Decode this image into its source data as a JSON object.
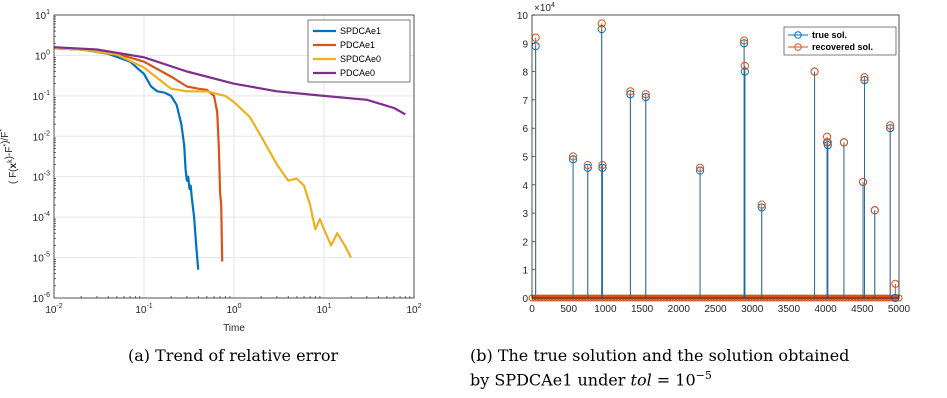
{
  "chart_data": [
    {
      "type": "line",
      "xscale": "log",
      "yscale": "log",
      "xlim": [
        0.01,
        100
      ],
      "ylim": [
        1e-06,
        10
      ],
      "xlabel": "Time",
      "ylabel": "( F(x^k)-F*)/F*",
      "xticks": [
        "10^-2",
        "10^-1",
        "10^0",
        "10^1",
        "10^2"
      ],
      "yticks": [
        "10^-6",
        "10^-5",
        "10^-4",
        "10^-3",
        "10^-2",
        "10^-1",
        "10^0",
        "10^1"
      ],
      "legend_position": "top-right",
      "series": [
        {
          "name": "SPDCAe1",
          "color": "#0072BD",
          "x": [
            0.01,
            0.02,
            0.04,
            0.07,
            0.1,
            0.12,
            0.14,
            0.17,
            0.2,
            0.23,
            0.26,
            0.28,
            0.29,
            0.3,
            0.31,
            0.32,
            0.33,
            0.34,
            0.36,
            0.38,
            0.4
          ],
          "y": [
            1.5,
            1.4,
            1.1,
            0.7,
            0.35,
            0.17,
            0.13,
            0.12,
            0.1,
            0.06,
            0.02,
            0.006,
            0.0015,
            0.0008,
            0.001,
            0.0005,
            0.0006,
            0.0003,
            0.0001,
            2e-05,
            5e-06
          ]
        },
        {
          "name": "PDCAe1",
          "color": "#D95319",
          "x": [
            0.01,
            0.02,
            0.05,
            0.1,
            0.2,
            0.3,
            0.4,
            0.5,
            0.6,
            0.65,
            0.68,
            0.7,
            0.72,
            0.74
          ],
          "y": [
            1.5,
            1.4,
            1.1,
            0.7,
            0.3,
            0.17,
            0.15,
            0.14,
            0.1,
            0.04,
            0.005,
            0.0004,
            0.0002,
            8e-06
          ]
        },
        {
          "name": "SPDCAe0",
          "color": "#EDB120",
          "x": [
            0.01,
            0.02,
            0.05,
            0.1,
            0.2,
            0.3,
            0.5,
            0.8,
            1,
            1.5,
            2,
            3,
            4,
            5,
            6,
            7,
            8,
            9,
            10,
            12,
            14,
            17,
            20
          ],
          "y": [
            1.5,
            1.4,
            1.05,
            0.5,
            0.15,
            0.13,
            0.13,
            0.1,
            0.07,
            0.03,
            0.01,
            0.002,
            0.0008,
            0.0009,
            0.0006,
            0.0002,
            5e-05,
            9e-05,
            5e-05,
            2e-05,
            4e-05,
            2e-05,
            1e-05
          ]
        },
        {
          "name": "PDCAe0",
          "color": "#7E2F8E",
          "x": [
            0.01,
            0.03,
            0.1,
            0.3,
            1,
            3,
            10,
            30,
            60,
            80
          ],
          "y": [
            1.6,
            1.4,
            0.9,
            0.4,
            0.2,
            0.13,
            0.1,
            0.08,
            0.05,
            0.035
          ]
        }
      ]
    },
    {
      "type": "scatter",
      "subtype": "stem",
      "xlim": [
        0,
        5000
      ],
      "ylim": [
        0,
        100000
      ],
      "yexponent": "x10^4",
      "xticks": [
        "0",
        "500",
        "1000",
        "1500",
        "2000",
        "2500",
        "3000",
        "3500",
        "4000",
        "4500",
        "5000"
      ],
      "yticks": [
        "0",
        "1",
        "2",
        "3",
        "4",
        "5",
        "6",
        "7",
        "8",
        "9",
        "10"
      ],
      "legend_position": "top-right",
      "series": [
        {
          "name": "true sol.",
          "color": "#0072BD",
          "marker": "circle",
          "x": [
            50,
            560,
            760,
            950,
            960,
            1340,
            1550,
            2290,
            2890,
            2900,
            3130,
            3850,
            4020,
            4030,
            4250,
            4510,
            4530,
            4670,
            4880,
            4950
          ],
          "y": [
            89000,
            49000,
            46000,
            95000,
            46000,
            72000,
            71000,
            45000,
            90000,
            80000,
            32000,
            80000,
            55000,
            54000,
            55000,
            41000,
            77000,
            31000,
            60000,
            0
          ]
        },
        {
          "name": "recovered sol.",
          "color": "#D95319",
          "marker": "circle",
          "x": [
            50,
            560,
            760,
            950,
            960,
            1340,
            1550,
            2290,
            2890,
            2900,
            3130,
            3850,
            4020,
            4030,
            4250,
            4510,
            4530,
            4670,
            4880,
            4950
          ],
          "y": [
            92000,
            50000,
            47000,
            97000,
            47000,
            73000,
            72000,
            46000,
            91000,
            82000,
            33000,
            80000,
            57000,
            55000,
            55000,
            41000,
            78000,
            31000,
            61000,
            5000
          ]
        }
      ]
    }
  ],
  "captions": {
    "a_label": "(a)",
    "a_text": "Trend of relative error",
    "b_label": "(b)",
    "b_line1": "The true solution and the solution obtained",
    "b_line2_pre": "by SPDCAe1 under",
    "b_tol": "tol",
    "b_eq": "= 10",
    "b_exp": "−5"
  }
}
